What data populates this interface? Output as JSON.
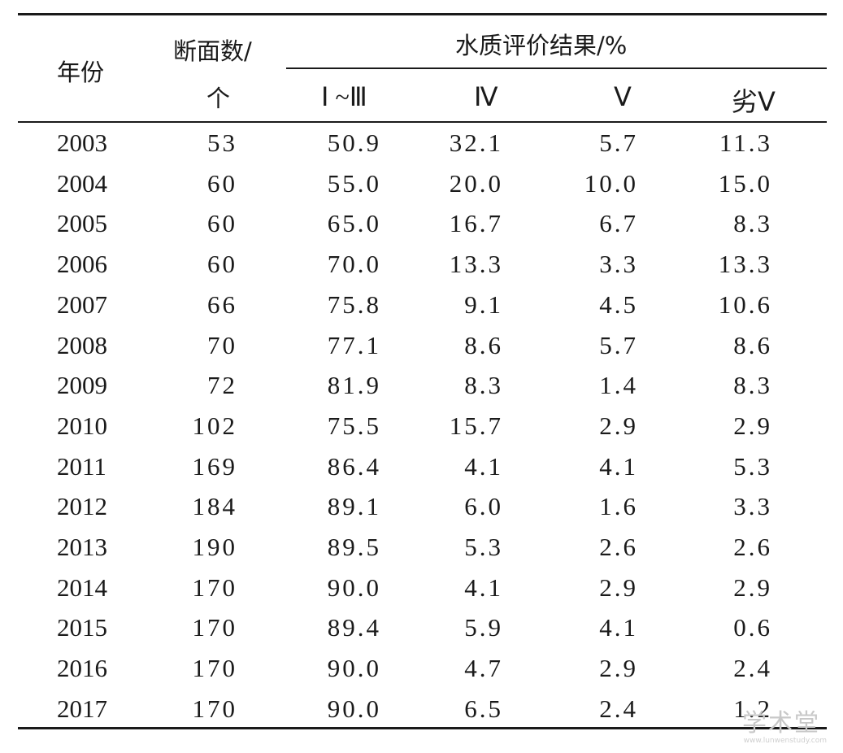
{
  "header": {
    "year": "年份",
    "sections_top": "断面数/",
    "sections_bottom": "个",
    "group": "水质评价结果/%",
    "classes": [
      "Ⅰ ~Ⅲ",
      "Ⅳ",
      "Ⅴ",
      "劣Ⅴ"
    ]
  },
  "rows": [
    [
      "2003",
      "53",
      "50.9",
      "32.1",
      "5.7",
      "11.3"
    ],
    [
      "2004",
      "60",
      "55.0",
      "20.0",
      "10.0",
      "15.0"
    ],
    [
      "2005",
      "60",
      "65.0",
      "16.7",
      "6.7",
      "8.3"
    ],
    [
      "2006",
      "60",
      "70.0",
      "13.3",
      "3.3",
      "13.3"
    ],
    [
      "2007",
      "66",
      "75.8",
      "9.1",
      "4.5",
      "10.6"
    ],
    [
      "2008",
      "70",
      "77.1",
      "8.6",
      "5.7",
      "8.6"
    ],
    [
      "2009",
      "72",
      "81.9",
      "8.3",
      "1.4",
      "8.3"
    ],
    [
      "2010",
      "102",
      "75.5",
      "15.7",
      "2.9",
      "2.9"
    ],
    [
      "2011",
      "169",
      "86.4",
      "4.1",
      "4.1",
      "5.3"
    ],
    [
      "2012",
      "184",
      "89.1",
      "6.0",
      "1.6",
      "3.3"
    ],
    [
      "2013",
      "190",
      "89.5",
      "5.3",
      "2.6",
      "2.6"
    ],
    [
      "2014",
      "170",
      "90.0",
      "4.1",
      "2.9",
      "2.9"
    ],
    [
      "2015",
      "170",
      "89.4",
      "5.9",
      "4.1",
      "0.6"
    ],
    [
      "2016",
      "170",
      "90.0",
      "4.7",
      "2.9",
      "2.4"
    ],
    [
      "2017",
      "170",
      "90.0",
      "6.5",
      "2.4",
      "1.2"
    ]
  ],
  "watermark": {
    "main": "学术堂",
    "sub": "www.lunwenstudy.com"
  }
}
